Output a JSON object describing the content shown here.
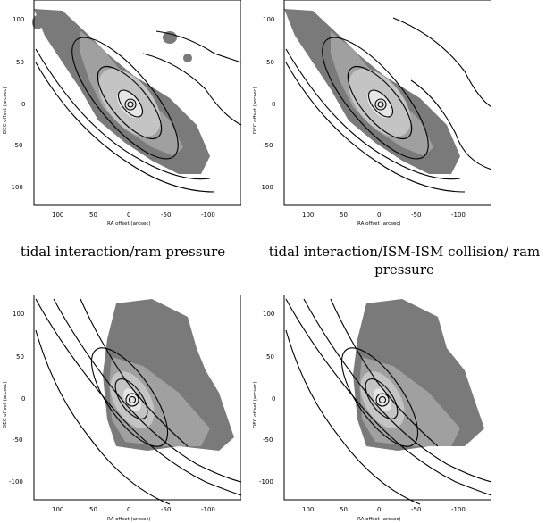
{
  "figure": {
    "captions": [
      "tidal interaction/ram pressure",
      "tidal interaction/ISM-ISM collision/ ram pressure"
    ],
    "panels": [
      {
        "xlabel": "RA offset (arcsec)",
        "ylabel": "DEC offset (arcsec)"
      },
      {
        "xlabel": "RA offset (arcsec)",
        "ylabel": "DEC offset (arcsec)"
      },
      {
        "xlabel": "RA offset (arcsec)",
        "ylabel": "DEC offset (arcsec)"
      },
      {
        "xlabel": "RA offset (arcsec)",
        "ylabel": "DEC offset (arcsec)"
      }
    ],
    "xticks": [
      "100",
      "50",
      "0",
      "-50",
      "-100"
    ],
    "yticks": [
      "100",
      "50",
      "0",
      "-50",
      "-100"
    ]
  }
}
